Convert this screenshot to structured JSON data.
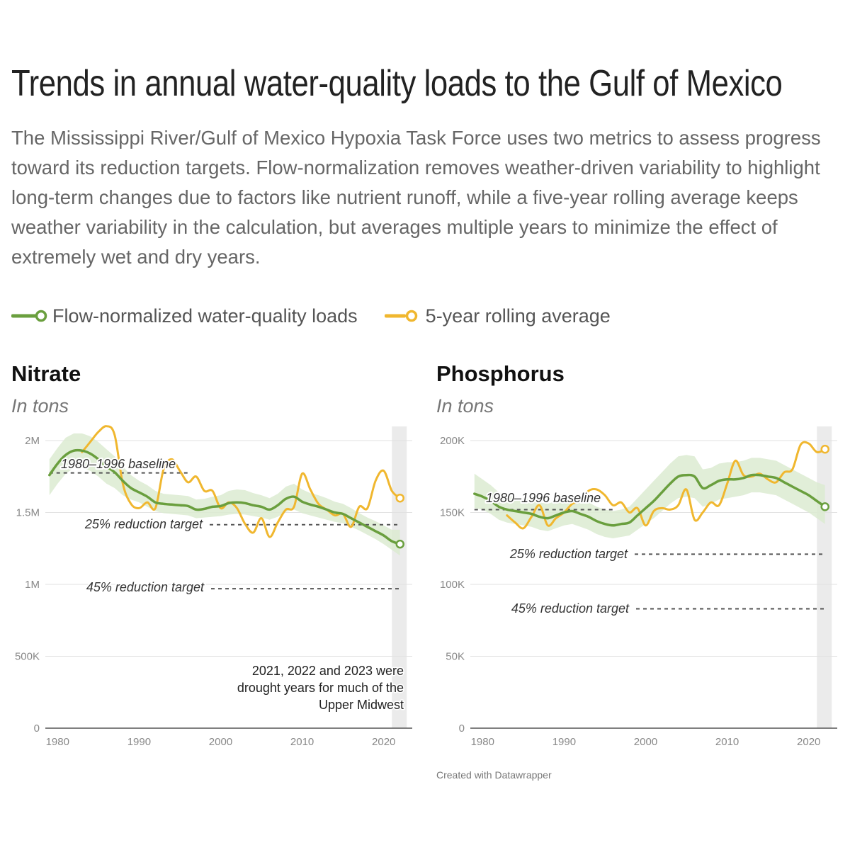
{
  "header": {
    "title": "Trends in annual water-quality loads to the Gulf of Mexico",
    "subtitle": "The Mississippi River/Gulf of Mexico Hypoxia Task Force uses two metrics to assess progress toward its reduction targets. Flow-normalization removes weather-driven variability to highlight long-term changes due to factors like nutrient runoff, while a five-year rolling average keeps weather variability in the calculation, but averages multiple years to minimize the effect of extremely wet and dry years."
  },
  "legend": {
    "flow_label": "Flow-normalized water-quality loads",
    "rolling_label": "5-year rolling average"
  },
  "colors": {
    "flow": "#6a9f3e",
    "band": "#dcebd1",
    "rolling": "#f0b72f",
    "shade": "#ebebeb",
    "grid": "#e2e2e2",
    "target": "#555555"
  },
  "credit": "Created with Datawrapper",
  "chart_data": [
    {
      "type": "line",
      "title": "Nitrate",
      "unit": "In tons",
      "xlim": [
        1978.5,
        2023.5
      ],
      "ylim": [
        0,
        2000000
      ],
      "x_ticks": [
        1980,
        1990,
        2000,
        2010,
        2020
      ],
      "y_ticks": [
        {
          "value": 0,
          "label": "0"
        },
        {
          "value": 500000,
          "label": "500K"
        },
        {
          "value": 1000000,
          "label": "1M"
        },
        {
          "value": 1500000,
          "label": "1.5M"
        },
        {
          "value": 2000000,
          "label": "2M"
        }
      ],
      "shaded_region": {
        "x": [
          2021,
          2023
        ],
        "note": [
          "2021, 2022 and 2023 were",
          "drought years for much of the",
          "Upper Midwest"
        ]
      },
      "reference_lines": [
        {
          "label": "1980–1996 baseline",
          "value": 1775000,
          "x": [
            1979,
            1996
          ]
        },
        {
          "label": "25% reduction target",
          "value": 1415000,
          "x": [
            1998,
            2022
          ]
        },
        {
          "label": "45% reduction target",
          "value": 970000,
          "x": [
            1998,
            2022
          ]
        }
      ],
      "series": [
        {
          "name": "Flow-normalized water-quality loads",
          "x": [
            1979,
            1980,
            1981,
            1982,
            1983,
            1984,
            1985,
            1986,
            1987,
            1988,
            1989,
            1990,
            1991,
            1992,
            1993,
            1994,
            1995,
            1996,
            1997,
            1998,
            1999,
            2000,
            2001,
            2002,
            2003,
            2004,
            2005,
            2006,
            2007,
            2008,
            2009,
            2010,
            2011,
            2012,
            2013,
            2014,
            2015,
            2016,
            2017,
            2018,
            2019,
            2020,
            2021,
            2022
          ],
          "values": [
            1760000,
            1840000,
            1900000,
            1930000,
            1930000,
            1910000,
            1870000,
            1820000,
            1780000,
            1720000,
            1670000,
            1640000,
            1610000,
            1570000,
            1560000,
            1555000,
            1550000,
            1545000,
            1520000,
            1525000,
            1540000,
            1545000,
            1565000,
            1570000,
            1565000,
            1550000,
            1540000,
            1520000,
            1550000,
            1595000,
            1610000,
            1575000,
            1555000,
            1540000,
            1520000,
            1500000,
            1490000,
            1460000,
            1430000,
            1400000,
            1370000,
            1340000,
            1300000,
            1280000
          ],
          "band_lower": [
            1620000,
            1700000,
            1770000,
            1810000,
            1810000,
            1790000,
            1750000,
            1700000,
            1670000,
            1620000,
            1590000,
            1570000,
            1540000,
            1510000,
            1495000,
            1490000,
            1485000,
            1480000,
            1460000,
            1465000,
            1470000,
            1475000,
            1485000,
            1490000,
            1485000,
            1475000,
            1465000,
            1450000,
            1470000,
            1505000,
            1520000,
            1495000,
            1480000,
            1465000,
            1450000,
            1435000,
            1425000,
            1400000,
            1375000,
            1345000,
            1315000,
            1280000,
            1240000,
            1200000
          ],
          "band_upper": [
            1870000,
            1950000,
            2020000,
            2050000,
            2050000,
            2030000,
            1990000,
            1940000,
            1890000,
            1820000,
            1760000,
            1720000,
            1690000,
            1650000,
            1630000,
            1625000,
            1620000,
            1615000,
            1590000,
            1595000,
            1610000,
            1620000,
            1650000,
            1660000,
            1655000,
            1635000,
            1620000,
            1600000,
            1630000,
            1680000,
            1700000,
            1660000,
            1635000,
            1620000,
            1600000,
            1575000,
            1560000,
            1530000,
            1495000,
            1465000,
            1440000,
            1410000,
            1380000,
            1380000
          ]
        },
        {
          "name": "5-year rolling average",
          "x": [
            1983,
            1984,
            1985,
            1986,
            1987,
            1988,
            1989,
            1990,
            1991,
            1992,
            1993,
            1994,
            1995,
            1996,
            1997,
            1998,
            1999,
            2000,
            2001,
            2002,
            2003,
            2004,
            2005,
            2006,
            2007,
            2008,
            2009,
            2010,
            2011,
            2012,
            2013,
            2014,
            2015,
            2016,
            2017,
            2018,
            2019,
            2020,
            2021,
            2022
          ],
          "values": [
            1920000,
            1990000,
            2060000,
            2100000,
            2040000,
            1700000,
            1560000,
            1530000,
            1570000,
            1530000,
            1800000,
            1870000,
            1790000,
            1710000,
            1750000,
            1650000,
            1650000,
            1530000,
            1570000,
            1530000,
            1420000,
            1360000,
            1460000,
            1330000,
            1430000,
            1520000,
            1540000,
            1770000,
            1660000,
            1560000,
            1520000,
            1480000,
            1490000,
            1400000,
            1540000,
            1530000,
            1720000,
            1790000,
            1650000,
            1600000
          ]
        }
      ]
    },
    {
      "type": "line",
      "title": "Phosphorus",
      "unit": "In tons",
      "xlim": [
        1978.5,
        2023.5
      ],
      "ylim": [
        0,
        200000
      ],
      "x_ticks": [
        1980,
        1990,
        2000,
        2010,
        2020
      ],
      "y_ticks": [
        {
          "value": 0,
          "label": "0"
        },
        {
          "value": 50000,
          "label": "50K"
        },
        {
          "value": 100000,
          "label": "100K"
        },
        {
          "value": 150000,
          "label": "150K"
        },
        {
          "value": 200000,
          "label": "200K"
        }
      ],
      "shaded_region": {
        "x": [
          2021,
          2023
        ]
      },
      "reference_lines": [
        {
          "label": "1980–1996 baseline",
          "value": 152000,
          "x": [
            1979,
            1996
          ]
        },
        {
          "label": "25% reduction target",
          "value": 121000,
          "x": [
            1998,
            2022
          ]
        },
        {
          "label": "45% reduction target",
          "value": 83000,
          "x": [
            1998,
            2022
          ]
        }
      ],
      "series": [
        {
          "name": "Flow-normalized water-quality loads",
          "x": [
            1979,
            1980,
            1981,
            1982,
            1983,
            1984,
            1985,
            1986,
            1987,
            1988,
            1989,
            1990,
            1991,
            1992,
            1993,
            1994,
            1995,
            1996,
            1997,
            1998,
            1999,
            2000,
            2001,
            2002,
            2003,
            2004,
            2005,
            2006,
            2007,
            2008,
            2009,
            2010,
            2011,
            2012,
            2013,
            2014,
            2015,
            2016,
            2017,
            2018,
            2019,
            2020,
            2021,
            2022
          ],
          "values": [
            163000,
            161000,
            158000,
            154000,
            152000,
            151000,
            150000,
            149000,
            147000,
            146000,
            148000,
            150000,
            151000,
            149000,
            147000,
            144000,
            142000,
            141000,
            142000,
            143000,
            148000,
            153000,
            158000,
            164000,
            170000,
            175000,
            176000,
            175000,
            167000,
            169000,
            172000,
            173000,
            173000,
            174000,
            176000,
            176000,
            175000,
            174000,
            171000,
            168000,
            165000,
            162000,
            158000,
            154000
          ],
          "band_lower": [
            153000,
            152000,
            149000,
            145000,
            143000,
            142000,
            141000,
            140000,
            138000,
            137000,
            139000,
            141000,
            142000,
            140000,
            138000,
            135000,
            133000,
            132000,
            133000,
            134000,
            138000,
            142000,
            146000,
            151000,
            156000,
            160000,
            161000,
            160000,
            154000,
            156000,
            159000,
            160000,
            161000,
            162000,
            164000,
            164000,
            163000,
            162000,
            159000,
            156000,
            153000,
            150000,
            146000,
            142000
          ],
          "band_upper": [
            177000,
            173000,
            169000,
            164000,
            162000,
            161000,
            160000,
            159000,
            157000,
            156000,
            158000,
            160000,
            161000,
            159000,
            157000,
            154000,
            152000,
            151000,
            152000,
            154000,
            160000,
            166000,
            172000,
            178000,
            184000,
            189000,
            190000,
            189000,
            180000,
            181000,
            184000,
            185000,
            185000,
            186000,
            188000,
            188000,
            187000,
            186000,
            183000,
            180000,
            177000,
            174000,
            171000,
            169000
          ]
        },
        {
          "name": "5-year rolling average",
          "x": [
            1983,
            1984,
            1985,
            1986,
            1987,
            1988,
            1989,
            1990,
            1991,
            1992,
            1993,
            1994,
            1995,
            1996,
            1997,
            1998,
            1999,
            2000,
            2001,
            2002,
            2003,
            2004,
            2005,
            2006,
            2007,
            2008,
            2009,
            2010,
            2011,
            2012,
            2013,
            2014,
            2015,
            2016,
            2017,
            2018,
            2019,
            2020,
            2021,
            2022
          ],
          "values": [
            148000,
            143000,
            139000,
            147000,
            155000,
            141000,
            146000,
            150000,
            156000,
            158000,
            165000,
            166000,
            162000,
            155000,
            157000,
            150000,
            153000,
            141000,
            151000,
            153000,
            152000,
            155000,
            166000,
            145000,
            150000,
            157000,
            155000,
            170000,
            186000,
            176000,
            175000,
            177000,
            173000,
            171000,
            178000,
            180000,
            197000,
            198000,
            192000,
            194000
          ]
        }
      ]
    }
  ]
}
